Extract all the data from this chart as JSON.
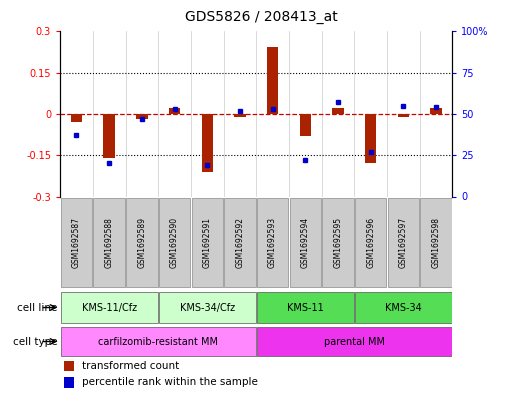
{
  "title": "GDS5826 / 208413_at",
  "samples": [
    "GSM1692587",
    "GSM1692588",
    "GSM1692589",
    "GSM1692590",
    "GSM1692591",
    "GSM1692592",
    "GSM1692593",
    "GSM1692594",
    "GSM1692595",
    "GSM1692596",
    "GSM1692597",
    "GSM1692598"
  ],
  "transformed_count": [
    -0.03,
    -0.16,
    -0.02,
    0.02,
    -0.21,
    -0.01,
    0.245,
    -0.08,
    0.02,
    -0.18,
    -0.01,
    0.02
  ],
  "percentile_rank": [
    37,
    20,
    47,
    53,
    19,
    52,
    53,
    22,
    57,
    27,
    55,
    54
  ],
  "ylim_left": [
    -0.3,
    0.3
  ],
  "ylim_right": [
    0,
    100
  ],
  "yticks_left": [
    -0.3,
    -0.15,
    0,
    0.15,
    0.3
  ],
  "yticks_right": [
    0,
    25,
    50,
    75,
    100
  ],
  "cell_line_groups": [
    {
      "label": "KMS-11/Cfz",
      "start": 0,
      "end": 2,
      "color": "#CCFFCC"
    },
    {
      "label": "KMS-34/Cfz",
      "start": 3,
      "end": 5,
      "color": "#CCFFCC"
    },
    {
      "label": "KMS-11",
      "start": 6,
      "end": 8,
      "color": "#55DD55"
    },
    {
      "label": "KMS-34",
      "start": 9,
      "end": 11,
      "color": "#55DD55"
    }
  ],
  "cell_type_groups": [
    {
      "label": "carfilzomib-resistant MM",
      "start": 0,
      "end": 5,
      "color": "#FF88FF"
    },
    {
      "label": "parental MM",
      "start": 6,
      "end": 11,
      "color": "#EE33EE"
    }
  ],
  "bar_color": "#AA2200",
  "dot_color": "#0000CC",
  "zero_line_color": "#CC0000",
  "bg_color": "#FFFFFF",
  "title_fontsize": 10,
  "tick_fontsize": 7,
  "label_fontsize": 7.5,
  "legend_fontsize": 7.5,
  "sample_box_color": "#CCCCCC",
  "cell_line_label": "cell line",
  "cell_type_label": "cell type",
  "legend_items": [
    {
      "label": "transformed count",
      "color": "#AA2200"
    },
    {
      "label": "percentile rank within the sample",
      "color": "#0000CC"
    }
  ]
}
